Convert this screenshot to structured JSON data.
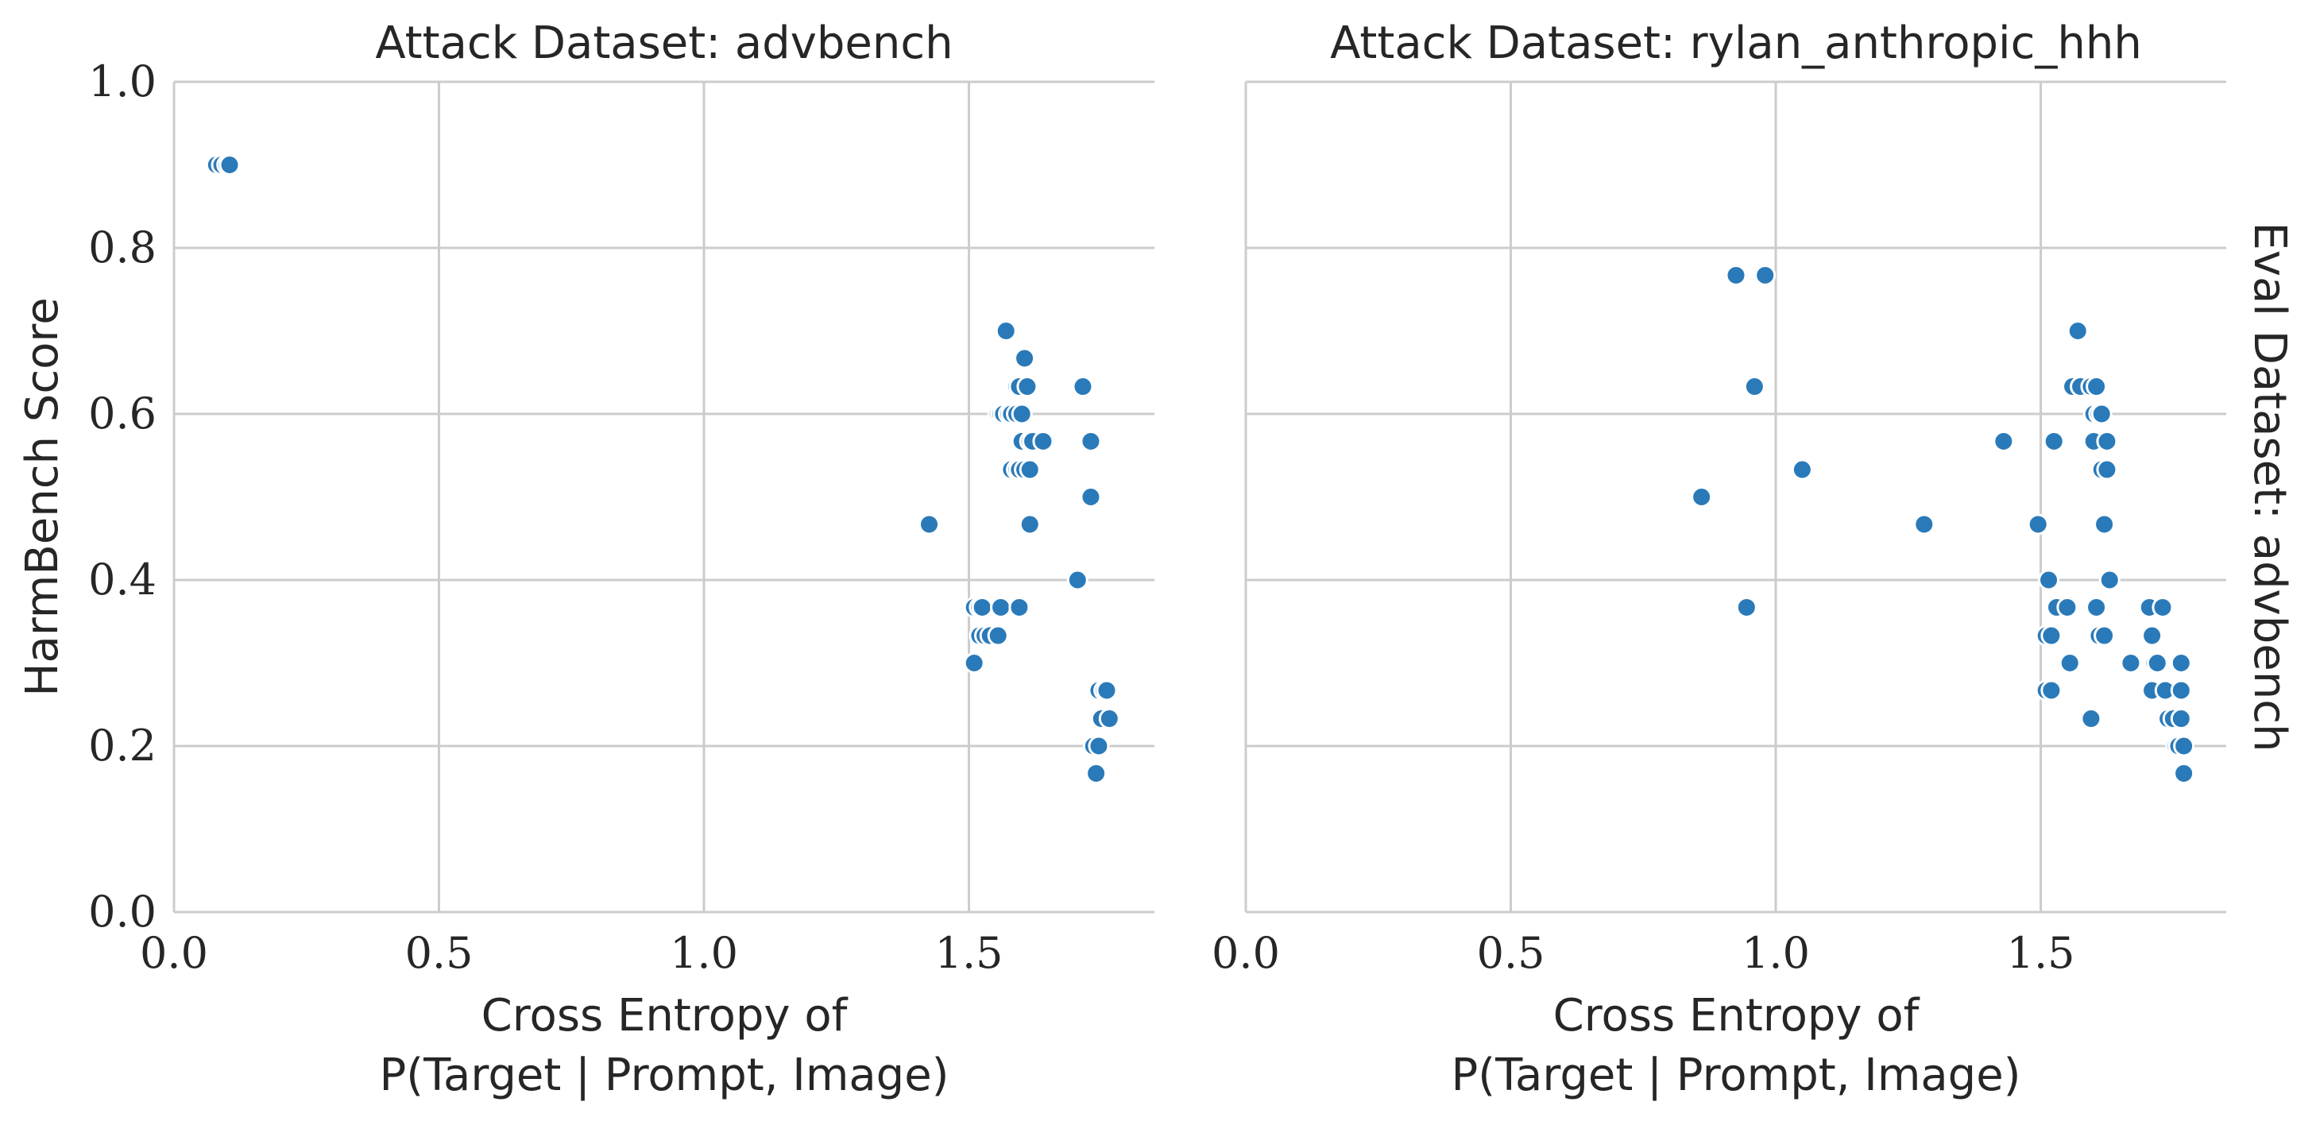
{
  "chart_data": [
    {
      "type": "scatter",
      "title": "Attack Dataset: advbench",
      "xlabel": [
        "Cross Entropy of",
        "P(Target | Prompt, Image)"
      ],
      "ylabel": "HarmBench Score",
      "xlim": [
        0,
        1.85
      ],
      "ylim": [
        0,
        1
      ],
      "xticks": [
        "0.0",
        "0.5",
        "1.0",
        "1.5"
      ],
      "yticks": [
        "0.0",
        "0.2",
        "0.4",
        "0.6",
        "0.8",
        "1.0"
      ],
      "grid": true,
      "color": "#2a7ab9",
      "points": [
        [
          0.08,
          0.9
        ],
        [
          0.09,
          0.9
        ],
        [
          0.1,
          0.9
        ],
        [
          0.105,
          0.9
        ],
        [
          1.425,
          0.467
        ],
        [
          1.51,
          0.3
        ],
        [
          1.51,
          0.367
        ],
        [
          1.52,
          0.367
        ],
        [
          1.525,
          0.367
        ],
        [
          1.52,
          0.333
        ],
        [
          1.53,
          0.333
        ],
        [
          1.54,
          0.333
        ],
        [
          1.555,
          0.333
        ],
        [
          1.56,
          0.367
        ],
        [
          1.555,
          0.6
        ],
        [
          1.56,
          0.6
        ],
        [
          1.565,
          0.6
        ],
        [
          1.57,
          0.7
        ],
        [
          1.575,
          0.6
        ],
        [
          1.58,
          0.6
        ],
        [
          1.58,
          0.533
        ],
        [
          1.59,
          0.533
        ],
        [
          1.59,
          0.6
        ],
        [
          1.59,
          0.633
        ],
        [
          1.595,
          0.367
        ],
        [
          1.595,
          0.533
        ],
        [
          1.595,
          0.633
        ],
        [
          1.6,
          0.6
        ],
        [
          1.6,
          0.567
        ],
        [
          1.605,
          0.667
        ],
        [
          1.605,
          0.533
        ],
        [
          1.61,
          0.633
        ],
        [
          1.615,
          0.567
        ],
        [
          1.615,
          0.467
        ],
        [
          1.615,
          0.533
        ],
        [
          1.62,
          0.567
        ],
        [
          1.64,
          0.567
        ],
        [
          1.705,
          0.4
        ],
        [
          1.715,
          0.633
        ],
        [
          1.73,
          0.5
        ],
        [
          1.73,
          0.567
        ],
        [
          1.735,
          0.2
        ],
        [
          1.74,
          0.167
        ],
        [
          1.745,
          0.267
        ],
        [
          1.745,
          0.2
        ],
        [
          1.75,
          0.233
        ],
        [
          1.755,
          0.267
        ],
        [
          1.76,
          0.267
        ],
        [
          1.765,
          0.233
        ]
      ]
    },
    {
      "type": "scatter",
      "title": "Attack Dataset: rylan_anthropic_hhh",
      "xlabel": [
        "Cross Entropy of",
        "P(Target | Prompt, Image)"
      ],
      "row_label": "Eval Dataset: advbench",
      "xlim": [
        0,
        1.85
      ],
      "ylim": [
        0,
        1
      ],
      "xticks": [
        "0.0",
        "0.5",
        "1.0",
        "1.5"
      ],
      "grid": true,
      "color": "#2a7ab9",
      "points": [
        [
          0.86,
          0.5
        ],
        [
          0.925,
          0.767
        ],
        [
          0.945,
          0.367
        ],
        [
          0.96,
          0.633
        ],
        [
          0.98,
          0.767
        ],
        [
          1.05,
          0.533
        ],
        [
          1.28,
          0.467
        ],
        [
          1.43,
          0.567
        ],
        [
          1.495,
          0.467
        ],
        [
          1.51,
          0.267
        ],
        [
          1.51,
          0.333
        ],
        [
          1.515,
          0.4
        ],
        [
          1.52,
          0.267
        ],
        [
          1.52,
          0.333
        ],
        [
          1.525,
          0.567
        ],
        [
          1.53,
          0.367
        ],
        [
          1.55,
          0.367
        ],
        [
          1.555,
          0.3
        ],
        [
          1.56,
          0.633
        ],
        [
          1.57,
          0.7
        ],
        [
          1.575,
          0.633
        ],
        [
          1.595,
          0.633
        ],
        [
          1.595,
          0.233
        ],
        [
          1.6,
          0.6
        ],
        [
          1.6,
          0.567
        ],
        [
          1.605,
          0.633
        ],
        [
          1.605,
          0.367
        ],
        [
          1.61,
          0.333
        ],
        [
          1.61,
          0.6
        ],
        [
          1.615,
          0.533
        ],
        [
          1.615,
          0.6
        ],
        [
          1.62,
          0.467
        ],
        [
          1.62,
          0.333
        ],
        [
          1.625,
          0.567
        ],
        [
          1.625,
          0.533
        ],
        [
          1.63,
          0.4
        ],
        [
          1.67,
          0.3
        ],
        [
          1.705,
          0.367
        ],
        [
          1.71,
          0.333
        ],
        [
          1.71,
          0.267
        ],
        [
          1.715,
          0.3
        ],
        [
          1.72,
          0.3
        ],
        [
          1.73,
          0.367
        ],
        [
          1.735,
          0.267
        ],
        [
          1.74,
          0.233
        ],
        [
          1.75,
          0.233
        ],
        [
          1.755,
          0.2
        ],
        [
          1.76,
          0.2
        ],
        [
          1.765,
          0.3
        ],
        [
          1.765,
          0.267
        ],
        [
          1.765,
          0.233
        ],
        [
          1.77,
          0.2
        ],
        [
          1.77,
          0.167
        ]
      ]
    }
  ]
}
